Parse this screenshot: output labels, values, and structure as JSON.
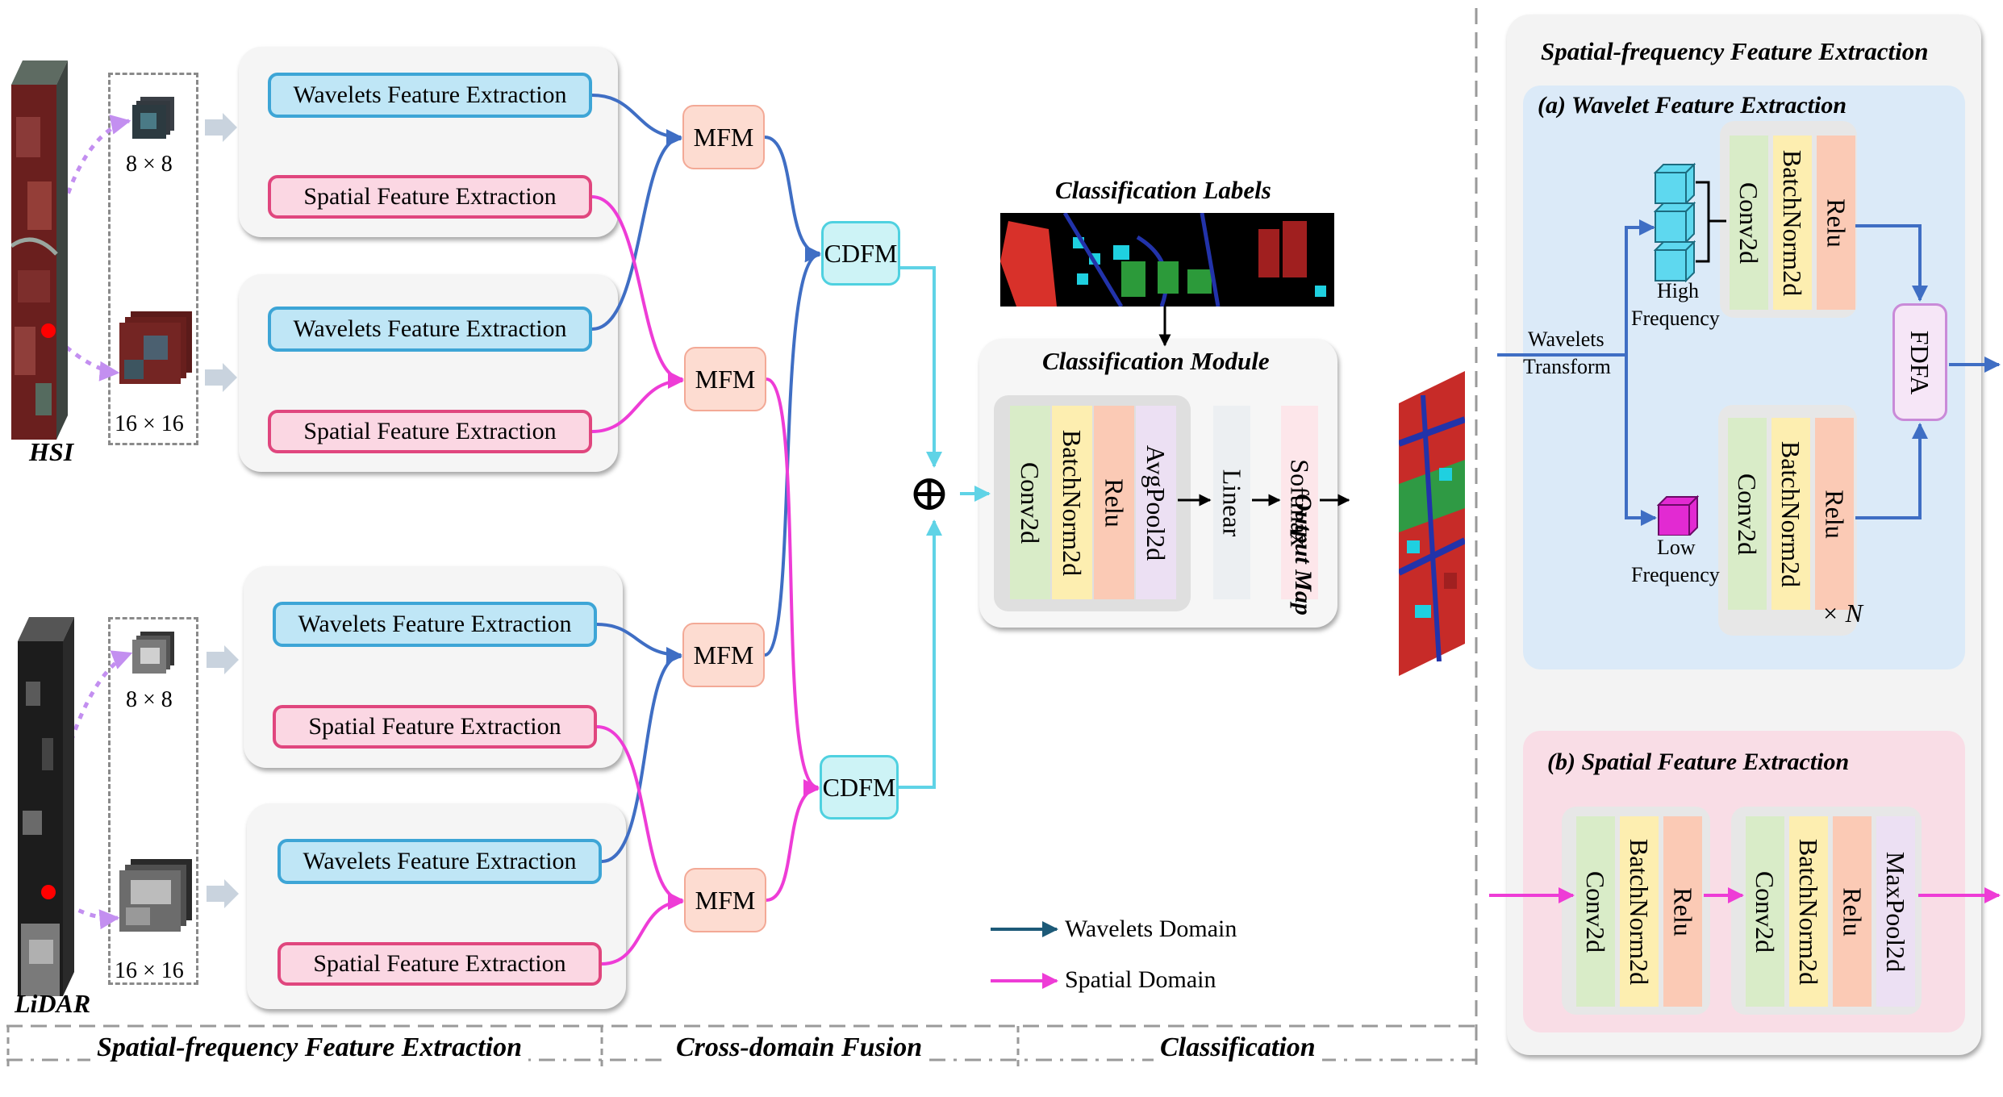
{
  "inputs": {
    "hsi_label": "HSI",
    "lidar_label": "LiDAR",
    "patch_small": "8 × 8",
    "patch_large": "16 × 16"
  },
  "branches": {
    "wfe_label": "Wavelets Feature Extraction",
    "sfe_label": "Spatial Feature Extraction"
  },
  "fusion": {
    "mfm_label": "MFM",
    "cdfm_label": "CDFM",
    "sum_symbol": "⊕"
  },
  "classification": {
    "labels_title": "Classification Labels",
    "module_title": "Classification Module",
    "layers": [
      "Conv2d",
      "BatchNorm2d",
      "Relu",
      "AvgPool2d"
    ],
    "linear": "Linear",
    "softmax": "Softmax",
    "output_label": "Output Map"
  },
  "legend": {
    "wavelets_domain": "Wavelets Domain",
    "spatial_domain": "Spatial Domain"
  },
  "footer": {
    "section1": "Spatial-frequency Feature Extraction",
    "section2": "Cross-domain Fusion",
    "section3": "Classification"
  },
  "right_panel": {
    "title": "Spatial-frequency Feature Extraction",
    "wavelet_title": "(a) Wavelet Feature Extraction",
    "wavelets_transform_1": "Wavelets",
    "wavelets_transform_2": "Transform",
    "high_1": "High",
    "high_2": "Frequency",
    "low_1": "Low",
    "low_2": "Frequency",
    "layers": [
      "Conv2d",
      "BatchNorm2d",
      "Relu"
    ],
    "fdfa": "FDFA",
    "repeat": "× N",
    "spatial_title": "(b) Spatial Feature Extraction",
    "spatial_block1": [
      "Conv2d",
      "BatchNorm2d",
      "Relu"
    ],
    "spatial_block2": [
      "Conv2d",
      "BatchNorm2d",
      "Relu",
      "MaxPool2d"
    ]
  },
  "colors": {
    "wavelet_arrow": "#3f6ec4",
    "spatial_arrow": "#ee3cd6",
    "fusion_arrow": "#5fd3e6",
    "legend_wavelet": "#1d5a78",
    "wfe_border": "#3da5d6",
    "sfe_border": "#e0467e"
  }
}
